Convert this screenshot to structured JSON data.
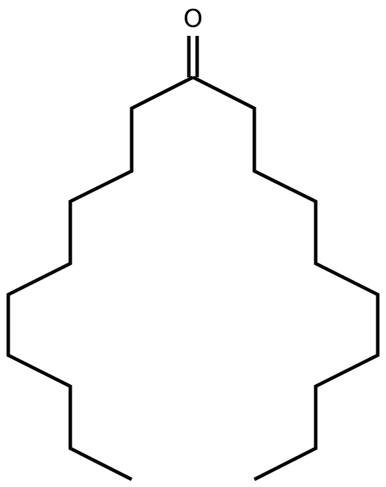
{
  "molecule": {
    "atom_labels": {
      "oxygen": "O"
    },
    "colors": {
      "bond": "#000000",
      "background": "#ffffff"
    }
  }
}
